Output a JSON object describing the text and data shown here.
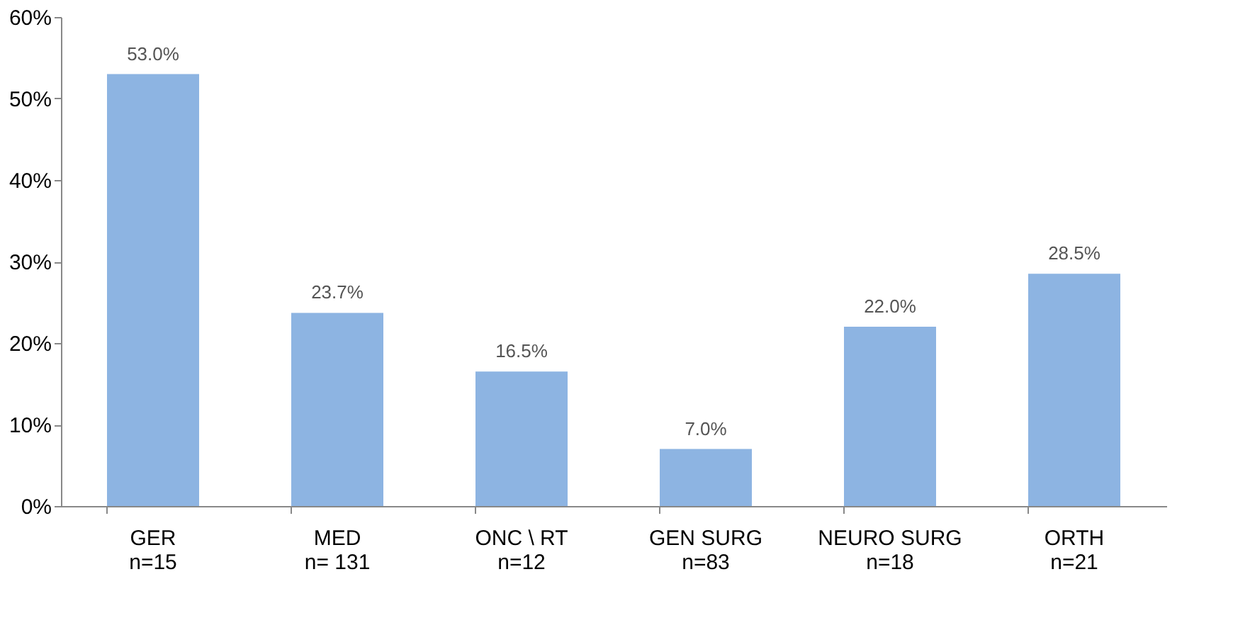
{
  "chart_data": {
    "type": "bar",
    "categories": [
      "GER\nn=15",
      "MED\nn= 131",
      "ONC \\ RT\nn=12",
      "GEN SURG\nn=83",
      "NEURO SURG\nn=18",
      "ORTH\nn=21"
    ],
    "values": [
      53.0,
      23.7,
      16.5,
      7.0,
      22.0,
      28.5
    ],
    "value_labels": [
      "53.0%",
      "23.7%",
      "16.5%",
      "7.0%",
      "22.0%",
      "28.5%"
    ],
    "color": "#8db4e2",
    "ylim": [
      0,
      60
    ],
    "yticks": [
      {
        "value": 0,
        "label": "0%"
      },
      {
        "value": 10,
        "label": "10%"
      },
      {
        "value": 20,
        "label": "20%"
      },
      {
        "value": 30,
        "label": "30%"
      },
      {
        "value": 40,
        "label": "40%"
      },
      {
        "value": 50,
        "label": "50%"
      },
      {
        "value": 60,
        "label": "60%"
      }
    ],
    "grid": false
  }
}
